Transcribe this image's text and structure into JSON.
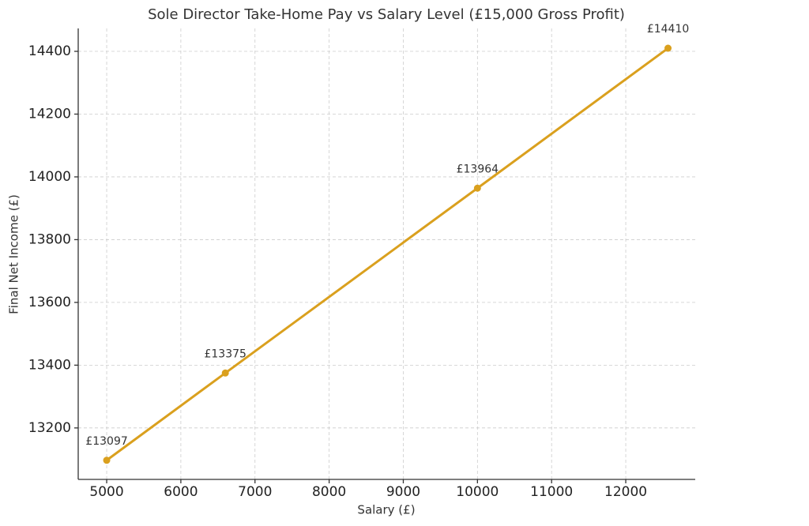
{
  "chart_data": {
    "type": "line",
    "title": "Sole Director Take-Home Pay vs Salary Level (£15,000 Gross Profit)",
    "x_label": "Salary (£)",
    "y_label": "Final Net Income (£)",
    "x": [
      5000,
      6600,
      10000,
      12570
    ],
    "series": [
      {
        "name": "Final Net Income",
        "color": "#daa01e",
        "values": [
          13097,
          13375,
          13964,
          14410
        ],
        "value_labels": [
          "£13097",
          "£13375",
          "£13964",
          "£14410"
        ]
      }
    ],
    "xlim": [
      4616,
      12937
    ],
    "ylim": [
      13036,
      14473
    ],
    "xticks": [
      5000,
      6000,
      7000,
      8000,
      9000,
      10000,
      11000,
      12000
    ],
    "yticks": [
      13200,
      13400,
      13600,
      13800,
      14000,
      14200,
      14400
    ],
    "grid": true
  }
}
